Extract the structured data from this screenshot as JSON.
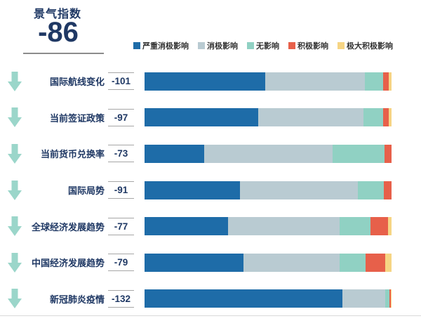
{
  "header": {
    "title": "景气指数",
    "value": "-86"
  },
  "colors": {
    "navy_text": "#1f3864",
    "arrow_teal": "#9bd6ca",
    "value_box_border": "#a6a6a6",
    "underline_gray": "#8c8c8c",
    "bottom_line_gray": "#d9d9d9",
    "legend_text": "#333333"
  },
  "trend_icon": "down-arrow",
  "chart_data": {
    "type": "bar",
    "orientation": "horizontal-stacked",
    "title": "景气指数",
    "index_value": -86,
    "unit": "percent-of-responses",
    "legend_position": "top-right",
    "categories": [
      "国际航线变化",
      "当前签证政策",
      "当前货币兑换率",
      "国际局势",
      "全球经济发展趋势",
      "中国经济发展趋势",
      "新冠肺炎疫情"
    ],
    "values": [
      "-101",
      "-97",
      "-73",
      "-91",
      "-77",
      "-79",
      "-132"
    ],
    "series": [
      {
        "name": "严重消极影响",
        "color": "#1e6ca8",
        "values": [
          49.0,
          46.0,
          24.2,
          38.6,
          33.8,
          40.0,
          80.0
        ]
      },
      {
        "name": "消极影响",
        "color": "#b9cbd2",
        "values": [
          40.3,
          42.5,
          51.8,
          47.9,
          45.2,
          38.9,
          17.5
        ]
      },
      {
        "name": "无影响",
        "color": "#90d1c3",
        "values": [
          7.2,
          8.0,
          21.3,
          10.5,
          12.4,
          10.5,
          1.6
        ]
      },
      {
        "name": "积极影响",
        "color": "#e7604a",
        "values": [
          2.3,
          2.4,
          2.7,
          3.0,
          7.1,
          8.0,
          0.6
        ]
      },
      {
        "name": "极大积极影响",
        "color": "#f6d584",
        "values": [
          1.2,
          1.1,
          0.0,
          0.0,
          1.5,
          2.6,
          0.3
        ]
      }
    ]
  }
}
